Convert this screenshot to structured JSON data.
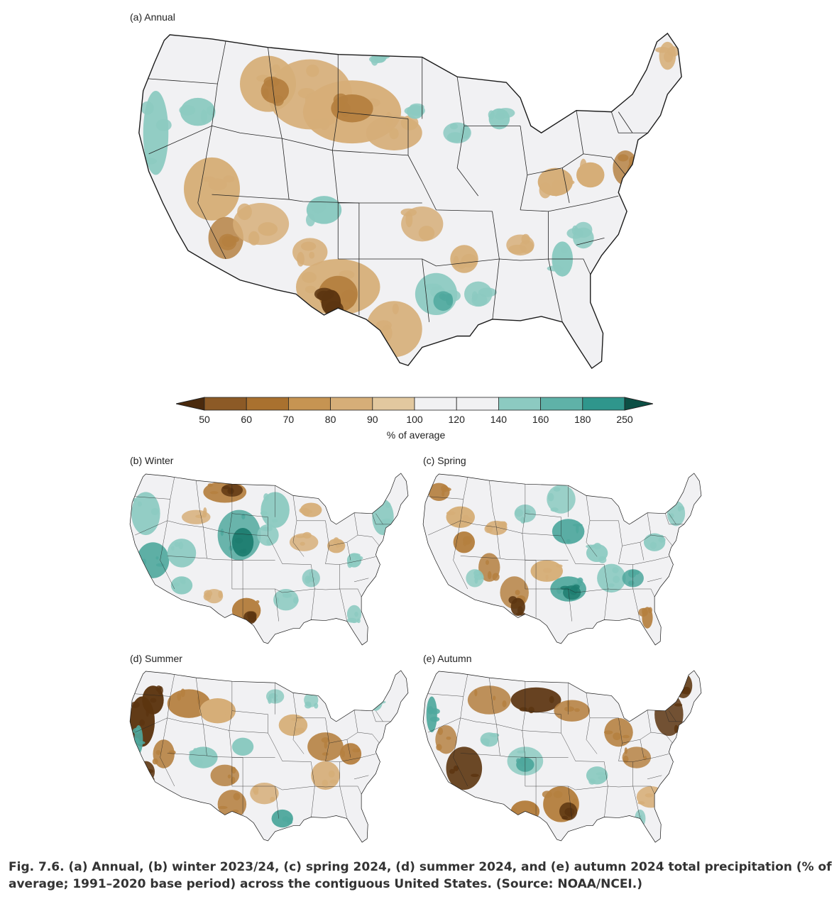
{
  "panels": {
    "annual": {
      "label": "(a) Annual"
    },
    "winter": {
      "label": "(b) Winter"
    },
    "spring": {
      "label": "(c) Spring"
    },
    "summer": {
      "label": "(d) Summer"
    },
    "autumn": {
      "label": "(e) Autumn"
    }
  },
  "legend": {
    "unit": "% of average",
    "ticks": [
      "50",
      "60",
      "70",
      "80",
      "90",
      "100",
      "120",
      "140",
      "160",
      "180",
      "250"
    ],
    "colors": [
      "#4a2a0d",
      "#8c5a26",
      "#a9712f",
      "#c69452",
      "#d6ae78",
      "#e2c89f",
      "#f1f1f3",
      "#f1f1f3",
      "#8ccac1",
      "#5fb2a8",
      "#2f968c",
      "#147868",
      "#0c4f45"
    ]
  },
  "caption": "Fig. 7.6. (a) Annual, (b) winter 2023/24, (c) spring 2024, (d) summer 2024, and (e) autumn 2024 total precipitation (% of average; 1991–2020 base period) across the contiguous United States. (Source: NOAA/NCEI.)",
  "map_style": {
    "background": "#f1f1f3",
    "dry_light": "#d6ae78",
    "dry_mid": "#b58040",
    "dry_dark": "#5c3510",
    "wet_light": "#8ccac1",
    "wet_mid": "#4fa89d",
    "wet_dark": "#1d7c70"
  }
}
